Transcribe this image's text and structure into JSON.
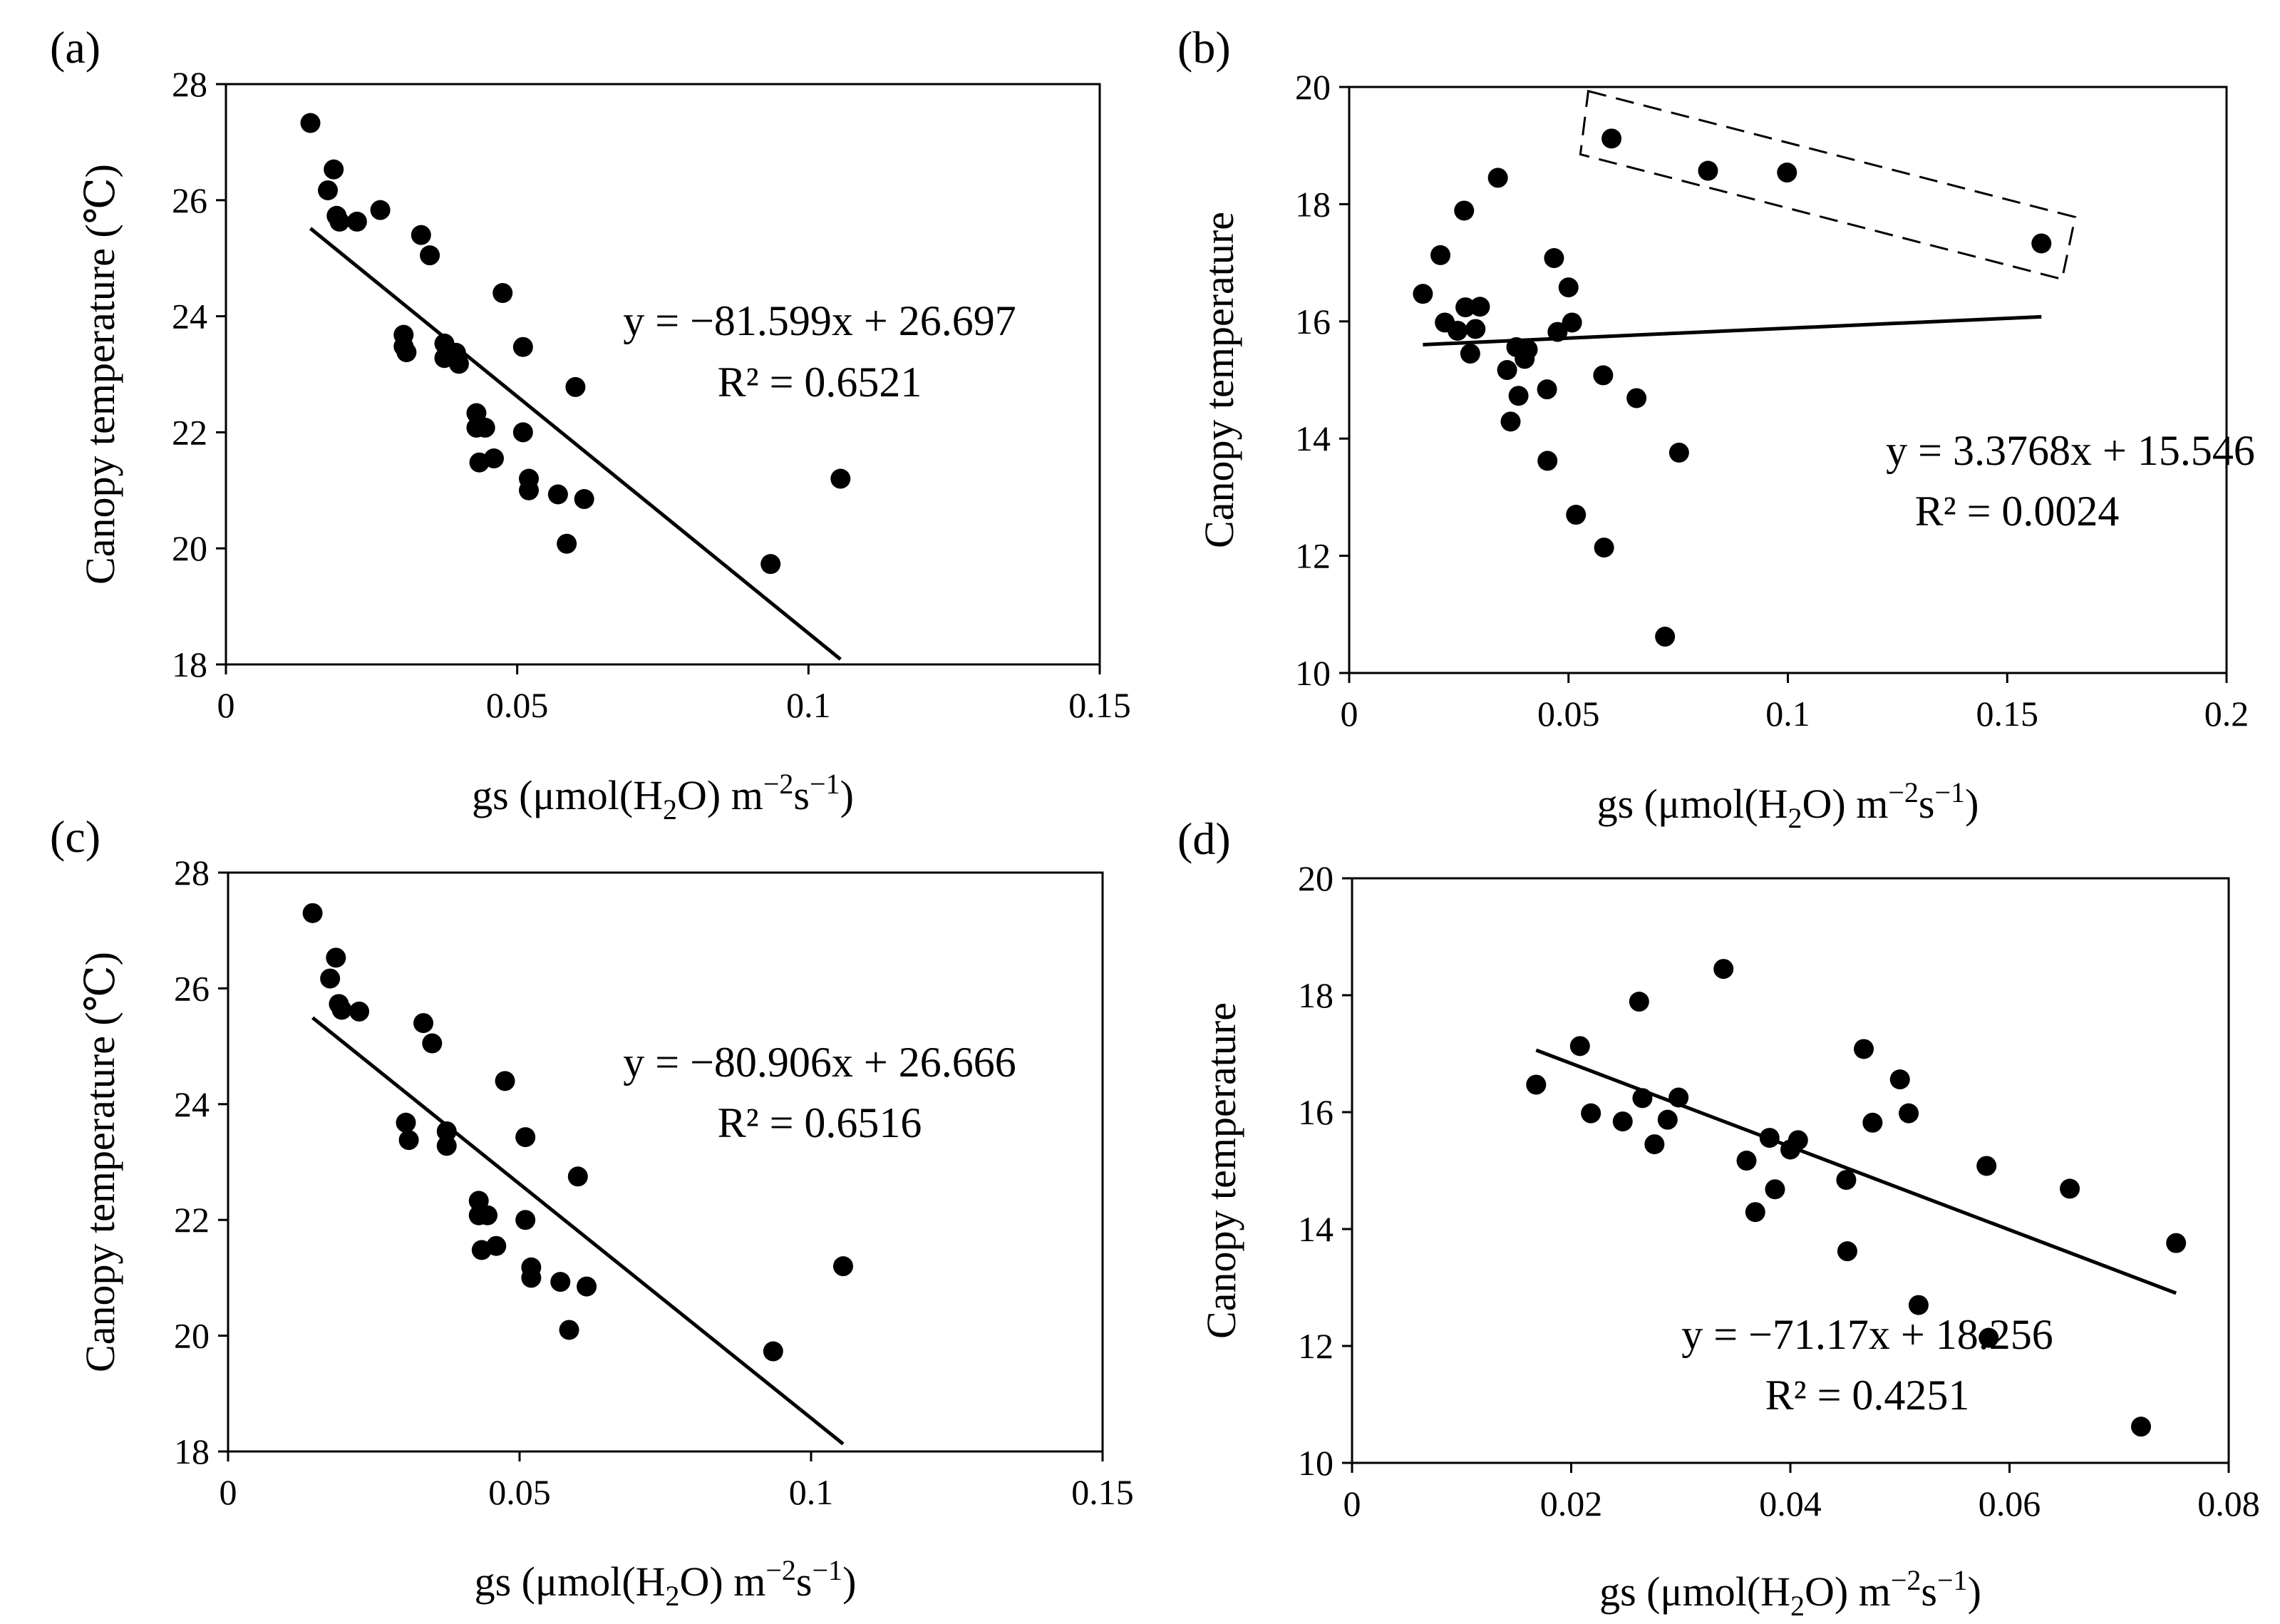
{
  "chart_data": [
    {
      "id": "a",
      "panel_label": "(a)",
      "type": "scatter",
      "xlabel_prefix": "gs (μmol(H",
      "xlabel_sub": "2",
      "xlabel_mid": "O)  m",
      "xlabel_sup1": "−2",
      "xlabel_s": "s",
      "xlabel_sup2": "−1",
      "xlabel_suffix": ")",
      "ylabel": "Canopy temperature (℃)",
      "xlim": [
        0,
        0.15
      ],
      "ylim": [
        18,
        28
      ],
      "xticks": [
        "0",
        "0.05",
        "0.1",
        "0.15"
      ],
      "yticks": [
        "18",
        "20",
        "22",
        "24",
        "26",
        "28"
      ],
      "points": [
        [
          0.0145,
          27.33
        ],
        [
          0.0175,
          26.17
        ],
        [
          0.0185,
          26.53
        ],
        [
          0.019,
          25.73
        ],
        [
          0.0195,
          25.63
        ],
        [
          0.0225,
          25.63
        ],
        [
          0.0265,
          25.83
        ],
        [
          0.0305,
          23.48
        ],
        [
          0.0305,
          23.68
        ],
        [
          0.031,
          23.38
        ],
        [
          0.0335,
          25.4
        ],
        [
          0.035,
          25.05
        ],
        [
          0.0375,
          23.53
        ],
        [
          0.0375,
          23.28
        ],
        [
          0.0395,
          23.37
        ],
        [
          0.04,
          23.18
        ],
        [
          0.043,
          22.33
        ],
        [
          0.043,
          22.08
        ],
        [
          0.0435,
          21.48
        ],
        [
          0.0445,
          22.08
        ],
        [
          0.046,
          21.55
        ],
        [
          0.0475,
          24.4
        ],
        [
          0.051,
          23.47
        ],
        [
          0.051,
          22.0
        ],
        [
          0.052,
          21.2
        ],
        [
          0.052,
          21.0
        ],
        [
          0.057,
          20.93
        ],
        [
          0.0585,
          20.08
        ],
        [
          0.06,
          22.78
        ],
        [
          0.0615,
          20.85
        ],
        [
          0.0935,
          19.73
        ],
        [
          0.1055,
          21.2
        ]
      ],
      "trendline": {
        "slope": -81.599,
        "intercept": 26.697,
        "x_range": [
          0.0145,
          0.1055
        ]
      },
      "equation": "y = −81.599x + 26.697",
      "r2": "R² = 0.6521"
    },
    {
      "id": "b",
      "panel_label": "(b)",
      "type": "scatter",
      "xlabel_prefix": "gs (μmol(H",
      "xlabel_sub": "2",
      "xlabel_mid": "O)  m",
      "xlabel_sup1": "−2",
      "xlabel_s": "s",
      "xlabel_sup2": "−1",
      "xlabel_suffix": ")",
      "ylabel": "Canopy temperature",
      "xlim": [
        0,
        0.2
      ],
      "ylim": [
        10,
        20
      ],
      "xticks": [
        "0",
        "0.05",
        "0.1",
        "0.15",
        "0.2"
      ],
      "yticks": [
        "10",
        "12",
        "14",
        "16",
        "18",
        "20"
      ],
      "points": [
        [
          0.0168,
          16.47
        ],
        [
          0.0208,
          17.13
        ],
        [
          0.0218,
          15.98
        ],
        [
          0.0247,
          15.84
        ],
        [
          0.0262,
          17.89
        ],
        [
          0.0265,
          16.24
        ],
        [
          0.0276,
          15.45
        ],
        [
          0.0288,
          15.87
        ],
        [
          0.0298,
          16.25
        ],
        [
          0.0339,
          18.45
        ],
        [
          0.036,
          15.17
        ],
        [
          0.0368,
          14.29
        ],
        [
          0.0381,
          15.56
        ],
        [
          0.0386,
          14.73
        ],
        [
          0.04,
          15.36
        ],
        [
          0.0407,
          15.52
        ],
        [
          0.0451,
          14.84
        ],
        [
          0.0452,
          13.62
        ],
        [
          0.0467,
          17.08
        ],
        [
          0.0475,
          15.82
        ],
        [
          0.05,
          16.58
        ],
        [
          0.0508,
          15.98
        ],
        [
          0.0517,
          12.7
        ],
        [
          0.0579,
          15.08
        ],
        [
          0.0581,
          12.14
        ],
        [
          0.0655,
          14.69
        ],
        [
          0.072,
          10.62
        ],
        [
          0.0752,
          13.76
        ],
        [
          0.0598,
          19.12
        ],
        [
          0.0818,
          18.57
        ],
        [
          0.0998,
          18.54
        ],
        [
          0.1578,
          17.33
        ]
      ],
      "trendline": {
        "slope": 3.3768,
        "intercept": 15.546,
        "x_range": [
          0.0168,
          0.1578
        ]
      },
      "highlight_box": [
        [
          0.0545,
          19.93
        ],
        [
          0.1655,
          17.78
        ],
        [
          0.1625,
          16.72
        ],
        [
          0.0527,
          18.85
        ]
      ],
      "equation": "y = 3.3768x + 15.546",
      "r2": "R² = 0.0024"
    },
    {
      "id": "c",
      "panel_label": "(c)",
      "type": "scatter",
      "xlabel_prefix": "gs (μmol(H",
      "xlabel_sub": "2",
      "xlabel_mid": "O)  m",
      "xlabel_sup1": "−2",
      "xlabel_s": "s",
      "xlabel_sup2": "−1",
      "xlabel_suffix": ")",
      "ylabel": "Canopy temperature (℃)",
      "xlim": [
        0,
        0.15
      ],
      "ylim": [
        18,
        28
      ],
      "xticks": [
        "0",
        "0.05",
        "0.1",
        "0.15"
      ],
      "yticks": [
        "18",
        "20",
        "22",
        "24",
        "26",
        "28"
      ],
      "points": [
        [
          0.0145,
          27.3
        ],
        [
          0.0175,
          26.17
        ],
        [
          0.0185,
          26.53
        ],
        [
          0.019,
          25.73
        ],
        [
          0.0195,
          25.63
        ],
        [
          0.0225,
          25.6
        ],
        [
          0.0305,
          23.68
        ],
        [
          0.031,
          23.38
        ],
        [
          0.0335,
          25.4
        ],
        [
          0.035,
          25.05
        ],
        [
          0.0375,
          23.53
        ],
        [
          0.0375,
          23.28
        ],
        [
          0.043,
          22.33
        ],
        [
          0.043,
          22.08
        ],
        [
          0.0435,
          21.48
        ],
        [
          0.0445,
          22.08
        ],
        [
          0.046,
          21.55
        ],
        [
          0.0475,
          24.4
        ],
        [
          0.051,
          23.43
        ],
        [
          0.051,
          22.0
        ],
        [
          0.052,
          21.18
        ],
        [
          0.052,
          21.0
        ],
        [
          0.057,
          20.93
        ],
        [
          0.0585,
          20.1
        ],
        [
          0.06,
          22.75
        ],
        [
          0.0615,
          20.85
        ],
        [
          0.0935,
          19.73
        ],
        [
          0.1055,
          21.2
        ]
      ],
      "trendline": {
        "slope": -80.906,
        "intercept": 26.666,
        "x_range": [
          0.0145,
          0.1055
        ]
      },
      "equation": "y = −80.906x + 26.666",
      "r2": "R² = 0.6516"
    },
    {
      "id": "d",
      "panel_label": "(d)",
      "type": "scatter",
      "xlabel_prefix": "gs (μmol(H",
      "xlabel_sub": "2",
      "xlabel_mid": "O)  m",
      "xlabel_sup1": "−2",
      "xlabel_s": "s",
      "xlabel_sup2": "−1",
      "xlabel_suffix": ")",
      "ylabel": "Canopy temperature",
      "xlim": [
        0,
        0.08
      ],
      "ylim": [
        10,
        20
      ],
      "xticks": [
        "0",
        "0.02",
        "0.04",
        "0.06",
        "0.08"
      ],
      "yticks": [
        "10",
        "12",
        "14",
        "16",
        "18",
        "20"
      ],
      "points": [
        [
          0.0168,
          16.47
        ],
        [
          0.0208,
          17.13
        ],
        [
          0.0218,
          15.98
        ],
        [
          0.0247,
          15.84
        ],
        [
          0.0262,
          17.89
        ],
        [
          0.0265,
          16.24
        ],
        [
          0.0276,
          15.45
        ],
        [
          0.0288,
          15.87
        ],
        [
          0.0298,
          16.25
        ],
        [
          0.0339,
          18.45
        ],
        [
          0.036,
          15.17
        ],
        [
          0.0368,
          14.29
        ],
        [
          0.0381,
          15.56
        ],
        [
          0.0386,
          14.68
        ],
        [
          0.04,
          15.36
        ],
        [
          0.0407,
          15.52
        ],
        [
          0.0451,
          14.84
        ],
        [
          0.0452,
          13.62
        ],
        [
          0.0467,
          17.08
        ],
        [
          0.0475,
          15.82
        ],
        [
          0.05,
          16.56
        ],
        [
          0.0508,
          15.98
        ],
        [
          0.0517,
          12.7
        ],
        [
          0.0579,
          15.08
        ],
        [
          0.0581,
          12.14
        ],
        [
          0.0655,
          14.69
        ],
        [
          0.072,
          10.62
        ],
        [
          0.0752,
          13.76
        ]
      ],
      "trendline": {
        "slope": -71.17,
        "intercept": 18.256,
        "x_range": [
          0.0168,
          0.0752
        ]
      },
      "equation": "y = −71.17x + 18.256",
      "r2": "R² = 0.4251"
    }
  ]
}
